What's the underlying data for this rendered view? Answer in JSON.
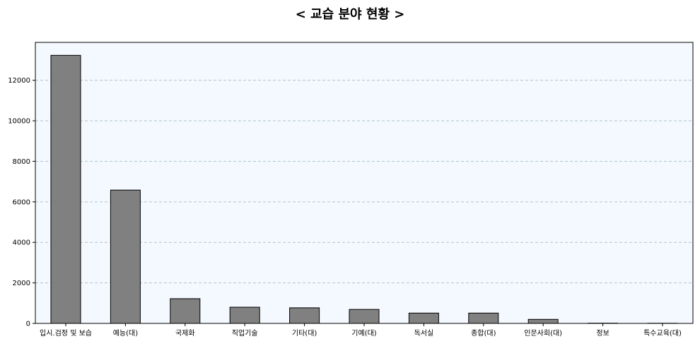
{
  "chart_data": {
    "type": "bar",
    "title": "< 교습 분야 현황 >",
    "xlabel": "",
    "ylabel": "",
    "categories": [
      "입시.검정 및 보습",
      "예능(대)",
      "국제화",
      "직업기술",
      "기타(대)",
      "기예(대)",
      "독서실",
      "종합(대)",
      "인문사회(대)",
      "정보",
      "특수교육(대)"
    ],
    "values": [
      13230,
      6580,
      1220,
      800,
      770,
      690,
      510,
      510,
      200,
      12,
      8
    ],
    "ylim": [
      0,
      13870
    ],
    "yticks": [
      0,
      2000,
      4000,
      6000,
      8000,
      10000,
      12000
    ],
    "ytick_labels": [
      "0",
      "2000",
      "4000",
      "6000",
      "8000",
      "10000",
      "12000"
    ],
    "grid": "y-dashed",
    "bar_color": "#808080",
    "bar_edge_color": "#000000",
    "plot_background": "#f4f9ff",
    "grid_color": "#b0c4cc"
  }
}
